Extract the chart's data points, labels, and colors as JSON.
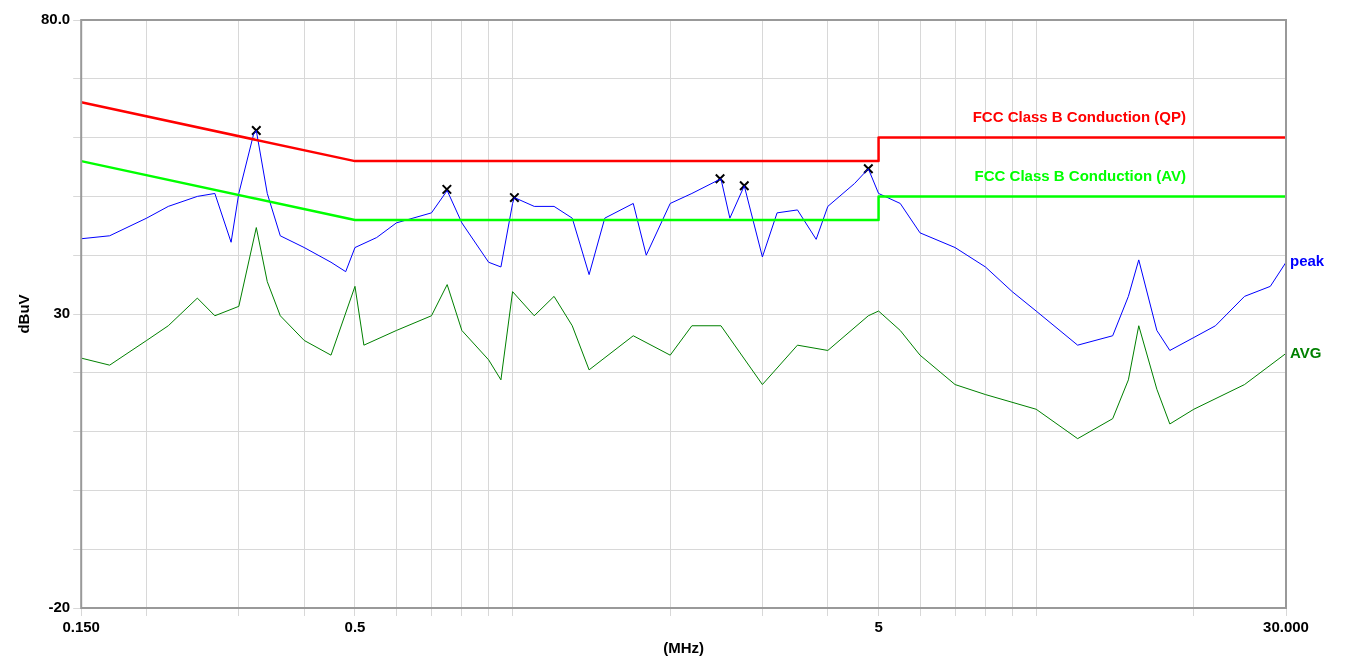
{
  "chart_data": {
    "type": "line",
    "ylabel": "dBuV",
    "xlabel": "(MHz)",
    "log": "x",
    "grid": true,
    "legend": false,
    "xlim": [
      0.15,
      30
    ],
    "ylim": [
      -20,
      80
    ],
    "xticks": [
      {
        "value": 0.15,
        "label": "0.150"
      },
      {
        "value": 0.2,
        "label": null
      },
      {
        "value": 0.3,
        "label": null
      },
      {
        "value": 0.4,
        "label": null
      },
      0.5,
      {
        "value": 0.6,
        "label": null
      },
      {
        "value": 0.7,
        "label": null
      },
      {
        "value": 0.8,
        "label": null
      },
      {
        "value": 0.9,
        "label": null
      },
      {
        "value": 1,
        "label": null
      },
      {
        "value": 2,
        "label": null
      },
      {
        "value": 3,
        "label": null
      },
      {
        "value": 4,
        "label": null
      },
      5,
      {
        "value": 6,
        "label": null
      },
      {
        "value": 7,
        "label": null
      },
      {
        "value": 8,
        "label": null
      },
      {
        "value": 9,
        "label": null
      },
      {
        "value": 10,
        "label": null
      },
      {
        "value": 20,
        "label": null
      },
      {
        "value": 30,
        "label": "30.000"
      }
    ],
    "yticks": [
      {
        "value": -20,
        "label": "-20"
      },
      {
        "value": -10,
        "label": null
      },
      {
        "value": 0,
        "label": null
      },
      {
        "value": 10,
        "label": null
      },
      {
        "value": 20,
        "label": null
      },
      30,
      {
        "value": 40,
        "label": null
      },
      {
        "value": 50,
        "label": null
      },
      {
        "value": 60,
        "label": null
      },
      {
        "value": 70,
        "label": null
      },
      {
        "value": 80,
        "label": "80.0"
      }
    ],
    "series": [
      {
        "name": "FCC Class B Conduction (QP)",
        "color": "#ff0000",
        "x": [
          0.15,
          0.5,
          5,
          5,
          30
        ],
        "values": [
          66,
          56,
          56,
          60,
          60
        ]
      },
      {
        "name": "FCC Class B Conduction (AV)",
        "color": "#00ff00",
        "x": [
          0.15,
          0.5,
          5,
          5,
          30
        ],
        "values": [
          56,
          46,
          46,
          50,
          50
        ]
      },
      {
        "name": "peak",
        "color": "#0000ff",
        "x": [
          0.15,
          0.17,
          0.2,
          0.22,
          0.25,
          0.27,
          0.29,
          0.3,
          0.32,
          0.324,
          0.34,
          0.36,
          0.4,
          0.45,
          0.48,
          0.5,
          0.55,
          0.6,
          0.7,
          0.75,
          0.8,
          0.9,
          0.95,
          1.0,
          1.008,
          1.1,
          1.2,
          1.3,
          1.4,
          1.5,
          1.7,
          1.8,
          2.0,
          2.2,
          2.5,
          2.6,
          2.77,
          3.0,
          3.2,
          3.5,
          3.8,
          4.0,
          4.5,
          4.78,
          5,
          5.5,
          6,
          7,
          8,
          9,
          10,
          12,
          14,
          15,
          15.7,
          17,
          18,
          20,
          22,
          25,
          28,
          30
        ],
        "values": [
          42.8,
          43.3,
          46.3,
          48.3,
          50,
          50.5,
          42.2,
          50.5,
          60.5,
          61.2,
          50.5,
          43.3,
          41.3,
          38.8,
          37.2,
          41.3,
          43,
          45.5,
          47.2,
          51,
          45.5,
          38.8,
          38,
          48.8,
          49.8,
          48.3,
          48.3,
          46.3,
          36.7,
          46.3,
          48.8,
          40,
          48.8,
          50.5,
          53,
          46.3,
          51.8,
          39.7,
          47.2,
          47.7,
          42.7,
          48.3,
          52.2,
          54.7,
          50.5,
          48.8,
          43.8,
          41.3,
          38,
          33.8,
          30.5,
          24.7,
          26.3,
          33,
          39.2,
          27.2,
          23.8,
          26,
          28,
          33,
          34.7,
          38.8
        ]
      },
      {
        "name": "AVG",
        "color": "#008000",
        "x": [
          0.15,
          0.17,
          0.2,
          0.22,
          0.25,
          0.27,
          0.3,
          0.324,
          0.34,
          0.36,
          0.4,
          0.45,
          0.5,
          0.52,
          0.6,
          0.7,
          0.75,
          0.8,
          0.9,
          0.95,
          1.0,
          1.1,
          1.2,
          1.3,
          1.4,
          1.7,
          2.0,
          2.2,
          2.5,
          3.0,
          3.5,
          4.0,
          4.78,
          5,
          5.5,
          6,
          7,
          8,
          10,
          12,
          14,
          15,
          15.7,
          17,
          18,
          20,
          25,
          30
        ],
        "values": [
          22.5,
          21.3,
          25.5,
          28,
          32.7,
          29.7,
          31.3,
          44.7,
          35.5,
          29.7,
          25.5,
          23,
          34.7,
          24.7,
          27.2,
          29.7,
          35,
          27.2,
          22.2,
          18.8,
          33.8,
          29.7,
          33,
          28,
          20.5,
          26.3,
          23,
          28,
          28,
          18,
          24.7,
          23.8,
          29.7,
          30.5,
          27.2,
          23,
          18,
          16.3,
          13.8,
          8.8,
          12.2,
          18.8,
          28,
          17.2,
          11.3,
          13.8,
          18,
          23.3
        ]
      },
      {
        "type": "scatter",
        "marker": "cross",
        "color": "#000000",
        "x": [
          0.324,
          0.749,
          1.008,
          2.49,
          2.77,
          4.78
        ],
        "values": [
          61.2,
          51.2,
          49.8,
          53,
          51.8,
          54.7
        ]
      }
    ]
  }
}
